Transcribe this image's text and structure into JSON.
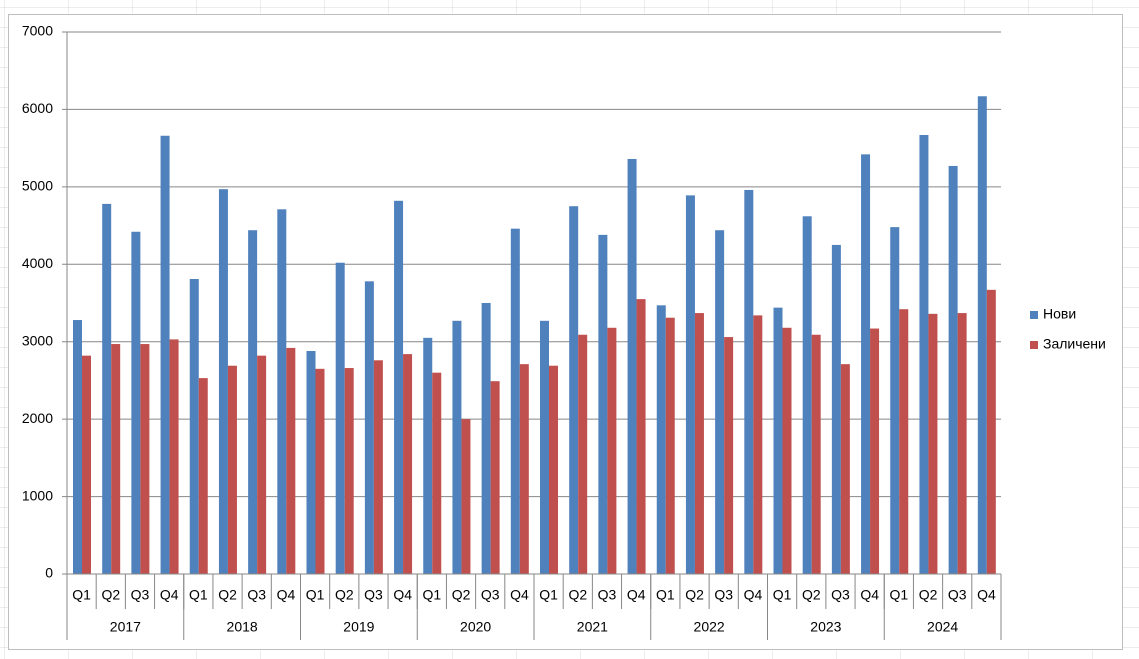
{
  "chart_data": {
    "type": "bar",
    "categories": [
      "Q1",
      "Q2",
      "Q3",
      "Q4",
      "Q1",
      "Q2",
      "Q3",
      "Q4",
      "Q1",
      "Q2",
      "Q3",
      "Q4",
      "Q1",
      "Q2",
      "Q3",
      "Q4",
      "Q1",
      "Q2",
      "Q3",
      "Q4",
      "Q1",
      "Q2",
      "Q3",
      "Q4",
      "Q1",
      "Q2",
      "Q3",
      "Q4",
      "Q1",
      "Q2",
      "Q3",
      "Q4"
    ],
    "groups": [
      "2017",
      "2018",
      "2019",
      "2020",
      "2021",
      "2022",
      "2023",
      "2024"
    ],
    "series": [
      {
        "name": "Нови",
        "color": "#4f81bd",
        "values": [
          3280,
          4780,
          4420,
          5660,
          3810,
          4970,
          4440,
          4710,
          2880,
          4020,
          3780,
          4820,
          3050,
          3270,
          3500,
          4460,
          3270,
          4750,
          4380,
          5360,
          3470,
          4890,
          4440,
          4960,
          3440,
          4620,
          4250,
          5420,
          4480,
          5670,
          5270,
          6170
        ]
      },
      {
        "name": "Заличени",
        "color": "#c0504d",
        "values": [
          2820,
          2970,
          2970,
          3030,
          2530,
          2690,
          2820,
          2920,
          2650,
          2660,
          2760,
          2840,
          2600,
          2000,
          2490,
          2710,
          2690,
          3090,
          3180,
          3550,
          3310,
          3370,
          3060,
          3340,
          3180,
          3090,
          2710,
          3170,
          3420,
          3360,
          3370,
          3670
        ]
      }
    ],
    "ylim": [
      0,
      7000
    ],
    "yticks": [
      0,
      1000,
      2000,
      3000,
      4000,
      5000,
      6000,
      7000
    ],
    "grid": true,
    "legend": "right"
  }
}
